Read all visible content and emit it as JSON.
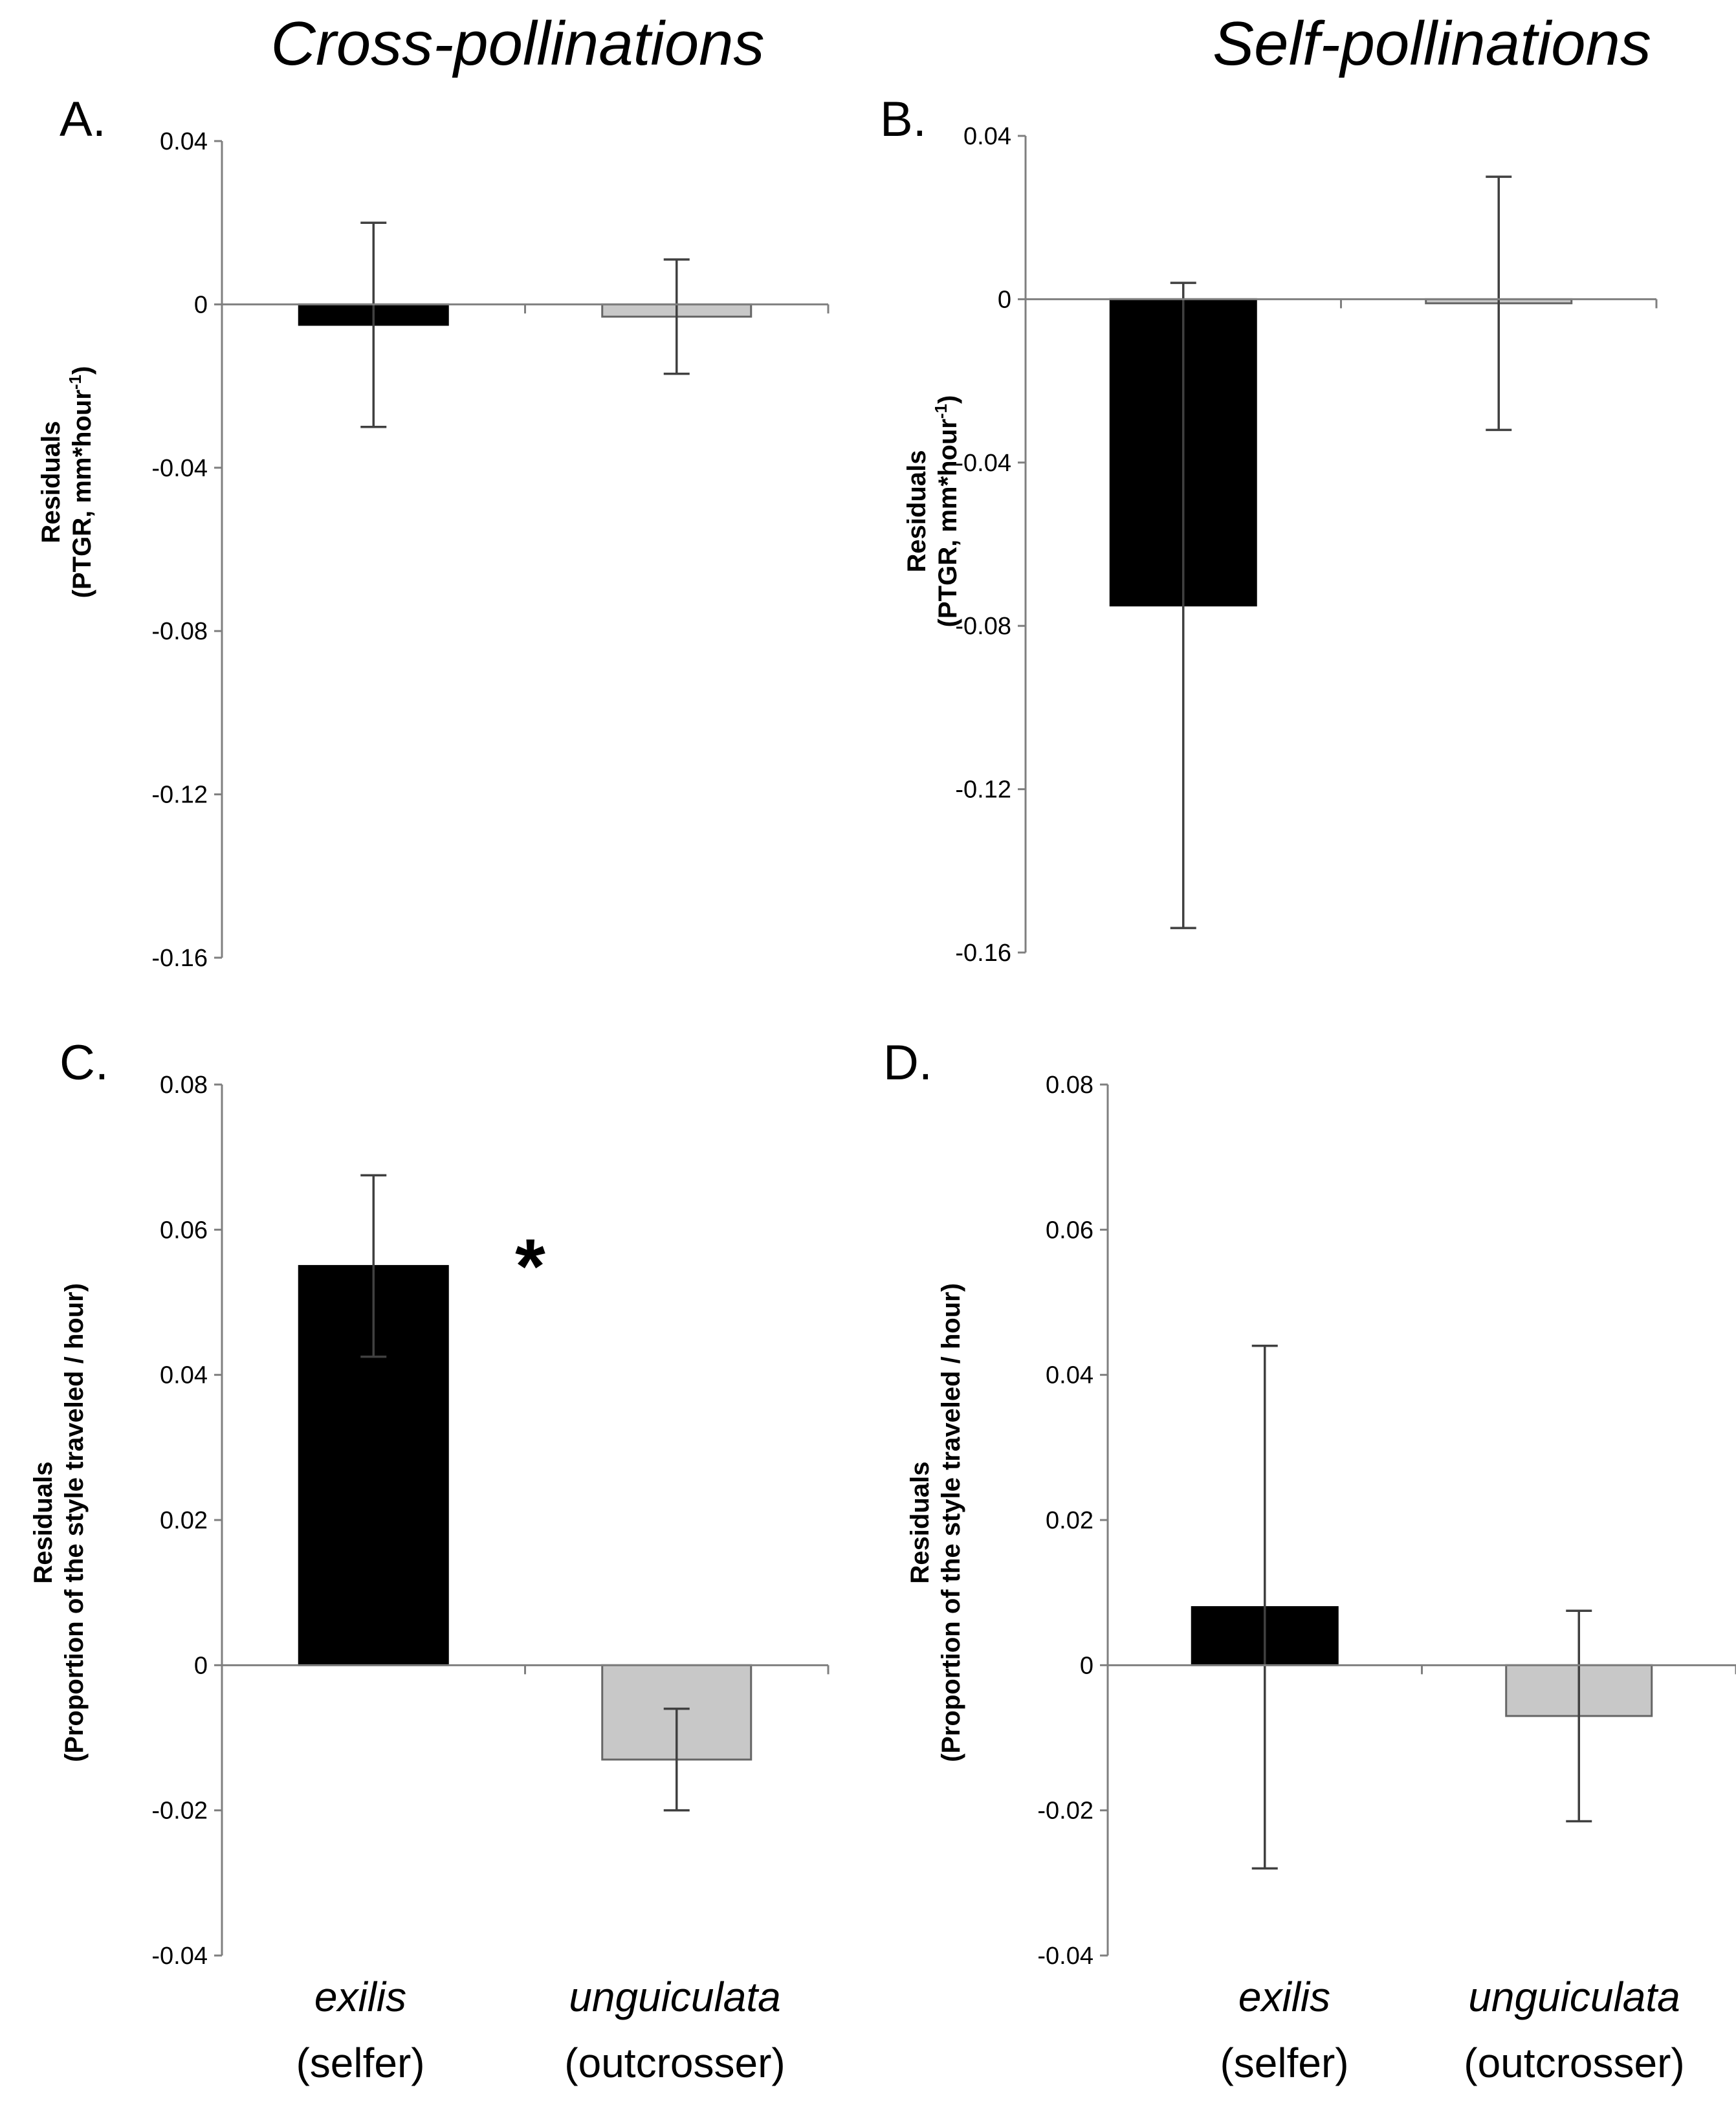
{
  "figure": {
    "left_title": "Cross-pollinations",
    "right_title": "Self-pollinations"
  },
  "colors": {
    "exilis": "#000000",
    "unguiculata": "#c8c8c8",
    "axis": "#7f7f7f",
    "error_bar": "#404040"
  },
  "chart_data": [
    {
      "panel": "A.",
      "type": "bar",
      "title": "Cross-pollinations",
      "ylabel": [
        "Residuals",
        "(PTGR, mm*hour-1)"
      ],
      "ylim": [
        -0.16,
        0.04
      ],
      "yticks": [
        0.04,
        0,
        -0.04,
        -0.08,
        -0.12,
        -0.16
      ],
      "ytick_labels": [
        "0.04",
        "0",
        "-0.04",
        "-0.08",
        "-0.12",
        "-0.16"
      ],
      "categories": [
        "exilis",
        "unguiculata"
      ],
      "values": [
        -0.005,
        -0.003
      ],
      "errors": [
        0.025,
        0.014
      ]
    },
    {
      "panel": "B.",
      "type": "bar",
      "title": "Self-pollinations",
      "ylabel": [
        "Residuals",
        "(PTGR, mm*hour-1)"
      ],
      "ylim": [
        -0.16,
        0.04
      ],
      "yticks": [
        0.04,
        0,
        -0.04,
        -0.08,
        -0.12,
        -0.16
      ],
      "ytick_labels": [
        "0.04",
        "0",
        "-0.04",
        "-0.08",
        "-0.12",
        "-0.16"
      ],
      "categories": [
        "exilis",
        "unguiculata"
      ],
      "values": [
        -0.075,
        -0.001
      ],
      "errors": [
        0.079,
        0.031
      ]
    },
    {
      "panel": "C.",
      "type": "bar",
      "title": "Cross-pollinations",
      "ylabel": [
        "Residuals",
        "(Proportion of the style traveled / hour)"
      ],
      "ylim": [
        -0.04,
        0.08
      ],
      "yticks": [
        0.08,
        0.06,
        0.04,
        0.02,
        0,
        -0.02,
        -0.04
      ],
      "ytick_labels": [
        "0.08",
        "0.06",
        "0.04",
        "0.02",
        "0",
        "-0.02",
        "-0.04"
      ],
      "categories": [
        "exilis",
        "unguiculata"
      ],
      "category_labels": [
        {
          "name": "exilis",
          "sub": "(selfer)"
        },
        {
          "name": "unguiculata",
          "sub": "(outcrosser)"
        }
      ],
      "values": [
        0.055,
        -0.013
      ],
      "errors": [
        0.0125,
        0.007
      ],
      "annotation": "*"
    },
    {
      "panel": "D.",
      "type": "bar",
      "title": "Self-pollinations",
      "ylabel": [
        "Residuals",
        "(Proportion of the style traveled / hour)"
      ],
      "ylim": [
        -0.04,
        0.08
      ],
      "yticks": [
        0.08,
        0.06,
        0.04,
        0.02,
        0,
        -0.02,
        -0.04
      ],
      "ytick_labels": [
        "0.08",
        "0.06",
        "0.04",
        "0.02",
        "0",
        "-0.02",
        "-0.04"
      ],
      "categories": [
        "exilis",
        "unguiculata"
      ],
      "category_labels": [
        {
          "name": "exilis",
          "sub": "(selfer)"
        },
        {
          "name": "unguiculata",
          "sub": "(outcrosser)"
        }
      ],
      "values": [
        0.008,
        -0.007
      ],
      "errors": [
        0.036,
        0.0145
      ]
    }
  ]
}
